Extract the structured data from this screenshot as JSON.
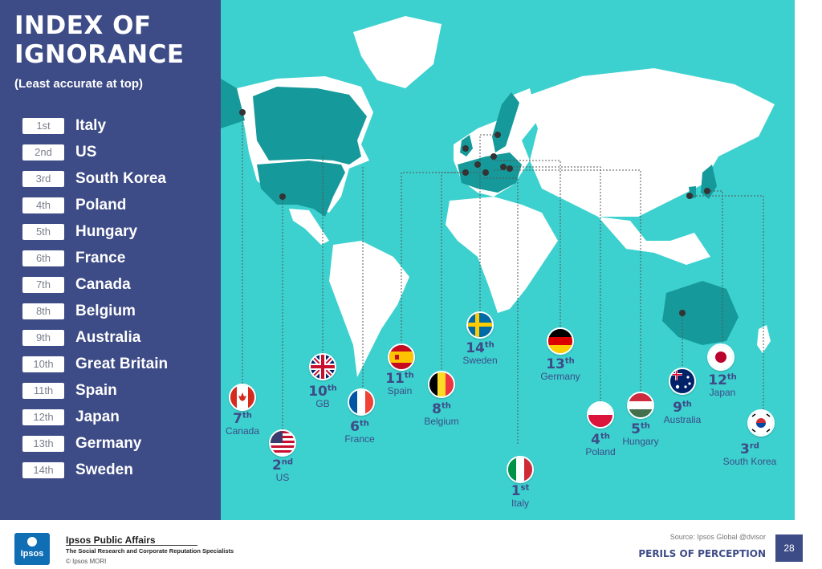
{
  "title_line1": "INDEX OF",
  "title_line2": "IGNORANCE",
  "subtitle": "(Least accurate at top)",
  "ranking": [
    {
      "badge": "1st",
      "country": "Italy"
    },
    {
      "badge": "2nd",
      "country": "US"
    },
    {
      "badge": "3rd",
      "country": "South Korea"
    },
    {
      "badge": "4th",
      "country": "Poland"
    },
    {
      "badge": "5th",
      "country": "Hungary"
    },
    {
      "badge": "6th",
      "country": "France"
    },
    {
      "badge": "7th",
      "country": "Canada"
    },
    {
      "badge": "8th",
      "country": "Belgium"
    },
    {
      "badge": "9th",
      "country": "Australia"
    },
    {
      "badge": "10th",
      "country": "Great Britain"
    },
    {
      "badge": "11th",
      "country": "Spain"
    },
    {
      "badge": "12th",
      "country": "Japan"
    },
    {
      "badge": "13th",
      "country": "Germany"
    },
    {
      "badge": "14th",
      "country": "Sweden"
    }
  ],
  "map_labels": {
    "canada": {
      "num": "7",
      "suf": "th",
      "name": "Canada"
    },
    "us": {
      "num": "2",
      "suf": "nd",
      "name": "US"
    },
    "gb": {
      "num": "10",
      "suf": "th",
      "name": "GB"
    },
    "france": {
      "num": "6",
      "suf": "th",
      "name": "France"
    },
    "spain": {
      "num": "11",
      "suf": "th",
      "name": "Spain"
    },
    "belgium": {
      "num": "8",
      "suf": "th",
      "name": "Belgium"
    },
    "sweden": {
      "num": "14",
      "suf": "th",
      "name": "Sweden"
    },
    "italy": {
      "num": "1",
      "suf": "st",
      "name": "Italy"
    },
    "germany": {
      "num": "13",
      "suf": "th",
      "name": "Germany"
    },
    "poland": {
      "num": "4",
      "suf": "th",
      "name": "Poland"
    },
    "hungary": {
      "num": "5",
      "suf": "th",
      "name": "Hungary"
    },
    "australia": {
      "num": "9",
      "suf": "th",
      "name": "Australia"
    },
    "japan": {
      "num": "12",
      "suf": "th",
      "name": "Japan"
    },
    "south_korea": {
      "num": "3",
      "suf": "rd",
      "name": "South Korea"
    }
  },
  "footer": {
    "logo_text": "Ipsos",
    "org_title": "Ipsos Public Affairs",
    "org_subtitle": "The Social Research and Corporate Reputation Specialists",
    "copyright": "© Ipsos MORI",
    "source": "Source: Ipsos Global @dvisor",
    "series": "PERILS OF PERCEPTION",
    "page": "28"
  },
  "colors": {
    "navy": "#3d4b86",
    "ocean": "#3cd1cf",
    "land": "#ffffff",
    "highlight": "#16999a"
  }
}
